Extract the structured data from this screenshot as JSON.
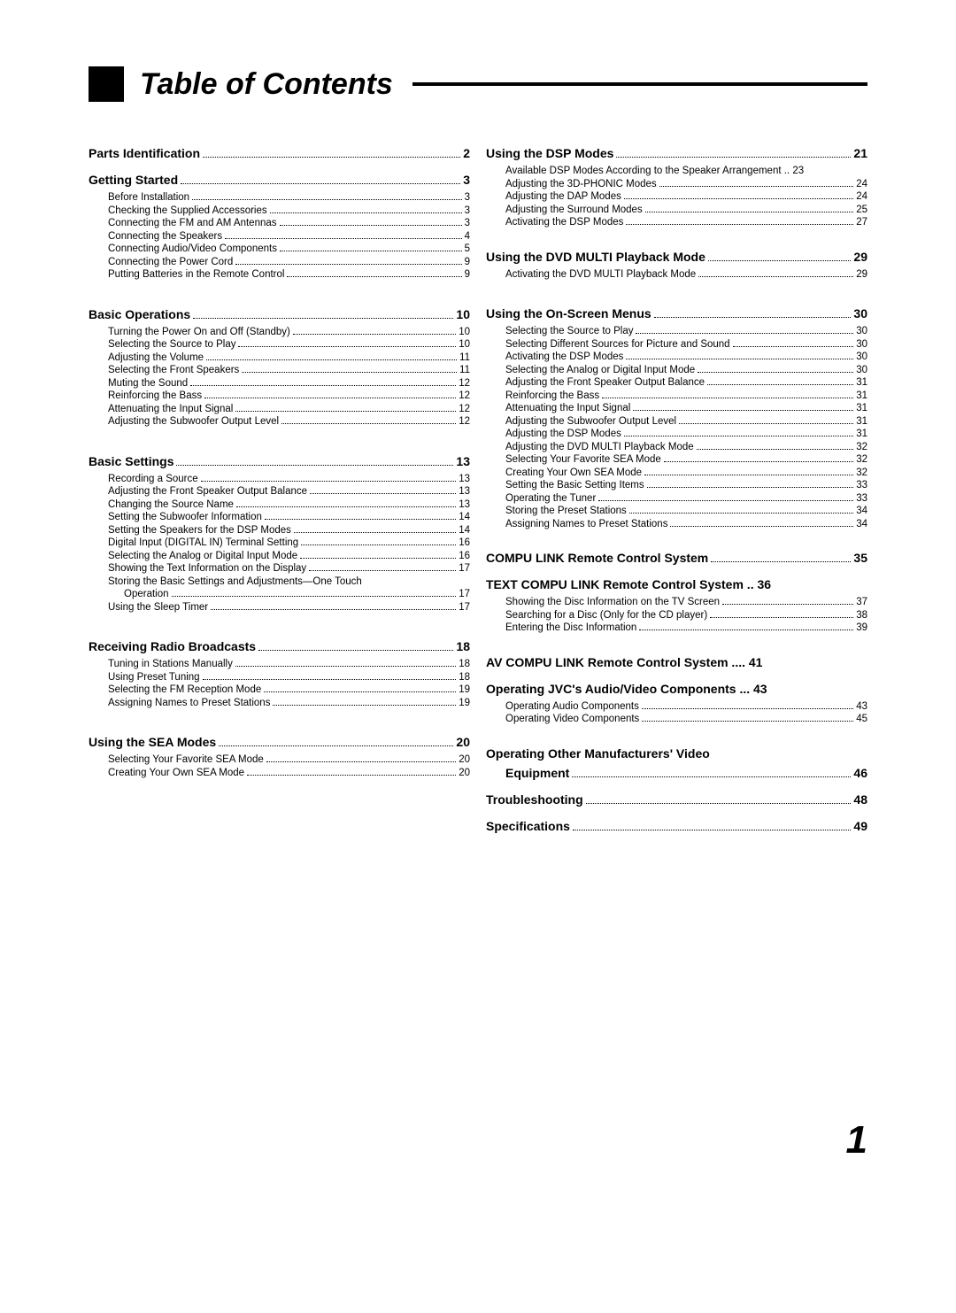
{
  "title": "Table of Contents",
  "page_number": "1",
  "left": [
    {
      "type": "head",
      "label": "Parts Identification",
      "page": "2"
    },
    {
      "type": "head",
      "label": "Getting Started",
      "page": "3"
    },
    {
      "type": "sub",
      "label": "Before Installation",
      "page": "3"
    },
    {
      "type": "sub",
      "label": "Checking the Supplied Accessories",
      "page": "3"
    },
    {
      "type": "sub",
      "label": "Connecting the FM and AM Antennas",
      "page": "3"
    },
    {
      "type": "sub",
      "label": "Connecting the Speakers",
      "page": "4"
    },
    {
      "type": "sub",
      "label": "Connecting Audio/Video Components",
      "page": "5"
    },
    {
      "type": "sub",
      "label": "Connecting the Power Cord",
      "page": "9"
    },
    {
      "type": "sub",
      "label": "Putting Batteries in the Remote Control",
      "page": "9"
    },
    {
      "type": "gap"
    },
    {
      "type": "head",
      "label": "Basic Operations",
      "page": "10"
    },
    {
      "type": "sub",
      "label": "Turning the Power On and Off (Standby)",
      "page": "10"
    },
    {
      "type": "sub",
      "label": "Selecting the Source to Play",
      "page": "10"
    },
    {
      "type": "sub",
      "label": "Adjusting the Volume",
      "page": "11"
    },
    {
      "type": "sub",
      "label": "Selecting the Front Speakers",
      "page": "11"
    },
    {
      "type": "sub",
      "label": "Muting the Sound",
      "page": "12"
    },
    {
      "type": "sub",
      "label": "Reinforcing the Bass",
      "page": "12"
    },
    {
      "type": "sub",
      "label": "Attenuating the Input Signal",
      "page": "12"
    },
    {
      "type": "sub",
      "label": "Adjusting the Subwoofer Output Level",
      "page": "12"
    },
    {
      "type": "gap"
    },
    {
      "type": "head",
      "label": "Basic Settings",
      "page": "13"
    },
    {
      "type": "sub",
      "label": "Recording a Source",
      "page": "13"
    },
    {
      "type": "sub",
      "label": "Adjusting the Front Speaker Output Balance",
      "page": "13"
    },
    {
      "type": "sub",
      "label": "Changing the Source Name",
      "page": "13"
    },
    {
      "type": "sub",
      "label": "Setting the Subwoofer Information",
      "page": "14"
    },
    {
      "type": "sub",
      "label": "Setting the Speakers for the DSP Modes",
      "page": "14"
    },
    {
      "type": "sub",
      "label": "Digital Input (DIGITAL IN) Terminal Setting",
      "page": "16"
    },
    {
      "type": "sub",
      "label": "Selecting the Analog or Digital Input Mode",
      "page": "16"
    },
    {
      "type": "sub",
      "label": "Showing the Text Information on the Display",
      "page": "17"
    },
    {
      "type": "sub-noleader",
      "label": "Storing the Basic Settings and Adjustments—One Touch"
    },
    {
      "type": "sub-indent",
      "label": "Operation",
      "page": "17"
    },
    {
      "type": "sub",
      "label": "Using the Sleep Timer",
      "page": "17"
    },
    {
      "type": "gap"
    },
    {
      "type": "head",
      "label": "Receiving Radio Broadcasts",
      "page": "18"
    },
    {
      "type": "sub",
      "label": "Tuning in Stations Manually",
      "page": "18"
    },
    {
      "type": "sub",
      "label": "Using Preset Tuning",
      "page": "18"
    },
    {
      "type": "sub",
      "label": "Selecting the FM Reception Mode",
      "page": "19"
    },
    {
      "type": "sub",
      "label": "Assigning Names to Preset Stations",
      "page": "19"
    },
    {
      "type": "gap"
    },
    {
      "type": "head",
      "label": "Using the SEA Modes",
      "page": "20"
    },
    {
      "type": "sub",
      "label": "Selecting Your Favorite SEA Mode",
      "page": "20"
    },
    {
      "type": "sub",
      "label": "Creating Your Own SEA Mode",
      "page": "20"
    }
  ],
  "right": [
    {
      "type": "head",
      "label": "Using the DSP Modes",
      "page": "21"
    },
    {
      "type": "sub-plain",
      "label": "Available DSP Modes According to the Speaker Arrangement .. 23"
    },
    {
      "type": "sub",
      "label": "Adjusting the 3D-PHONIC Modes",
      "page": "24"
    },
    {
      "type": "sub",
      "label": "Adjusting the DAP Modes",
      "page": "24"
    },
    {
      "type": "sub",
      "label": "Adjusting the Surround Modes",
      "page": "25"
    },
    {
      "type": "sub",
      "label": "Activating the DSP Modes",
      "page": "27"
    },
    {
      "type": "gap-sm"
    },
    {
      "type": "head",
      "label": "Using the DVD MULTI Playback Mode",
      "page": "29"
    },
    {
      "type": "sub",
      "label": "Activating the DVD MULTI Playback Mode",
      "page": "29"
    },
    {
      "type": "gap"
    },
    {
      "type": "head",
      "label": "Using the On-Screen Menus",
      "page": "30"
    },
    {
      "type": "sub",
      "label": "Selecting the Source to Play",
      "page": "30"
    },
    {
      "type": "sub",
      "label": "Selecting Different Sources for Picture and Sound",
      "page": "30"
    },
    {
      "type": "sub",
      "label": "Activating the DSP Modes",
      "page": "30"
    },
    {
      "type": "sub",
      "label": "Selecting the Analog or Digital Input Mode",
      "page": "30"
    },
    {
      "type": "sub",
      "label": "Adjusting the Front Speaker Output Balance",
      "page": "31"
    },
    {
      "type": "sub",
      "label": "Reinforcing the Bass",
      "page": "31"
    },
    {
      "type": "sub",
      "label": "Attenuating the Input Signal",
      "page": "31"
    },
    {
      "type": "sub",
      "label": "Adjusting the Subwoofer Output Level",
      "page": "31"
    },
    {
      "type": "sub",
      "label": "Adjusting the DSP Modes",
      "page": "31"
    },
    {
      "type": "sub",
      "label": "Adjusting the DVD MULTI Playback Mode",
      "page": "32"
    },
    {
      "type": "sub",
      "label": "Selecting Your Favorite SEA Mode",
      "page": "32"
    },
    {
      "type": "sub",
      "label": "Creating Your Own SEA Mode",
      "page": "32"
    },
    {
      "type": "sub",
      "label": "Setting the Basic Setting Items",
      "page": "33"
    },
    {
      "type": "sub",
      "label": "Operating the Tuner",
      "page": "33"
    },
    {
      "type": "sub",
      "label": "Storing the Preset Stations",
      "page": "34"
    },
    {
      "type": "sub",
      "label": "Assigning Names to Preset Stations",
      "page": "34"
    },
    {
      "type": "gap-sm"
    },
    {
      "type": "head",
      "label": "COMPU LINK Remote Control System",
      "page": "35"
    },
    {
      "type": "head-plain",
      "label": "TEXT COMPU LINK Remote Control System .. 36"
    },
    {
      "type": "sub",
      "label": "Showing the Disc Information on the TV Screen",
      "page": "37"
    },
    {
      "type": "sub",
      "label": "Searching for a Disc (Only for the CD player)",
      "page": "38"
    },
    {
      "type": "sub",
      "label": "Entering the Disc Information",
      "page": "39"
    },
    {
      "type": "gap-sm"
    },
    {
      "type": "head-plain",
      "label": "AV COMPU LINK Remote Control System .... 41"
    },
    {
      "type": "head-plain",
      "label": "Operating JVC's Audio/Video Components ... 43"
    },
    {
      "type": "sub",
      "label": "Operating Audio Components",
      "page": "43"
    },
    {
      "type": "sub",
      "label": "Operating Video Components",
      "page": "45"
    },
    {
      "type": "gap-sm"
    },
    {
      "type": "head-noleader",
      "label": "Operating Other Manufacturers' Video"
    },
    {
      "type": "head-indent",
      "label": "Equipment",
      "page": "46"
    },
    {
      "type": "head",
      "label": "Troubleshooting",
      "page": "48"
    },
    {
      "type": "head",
      "label": "Specifications",
      "page": "49"
    }
  ]
}
